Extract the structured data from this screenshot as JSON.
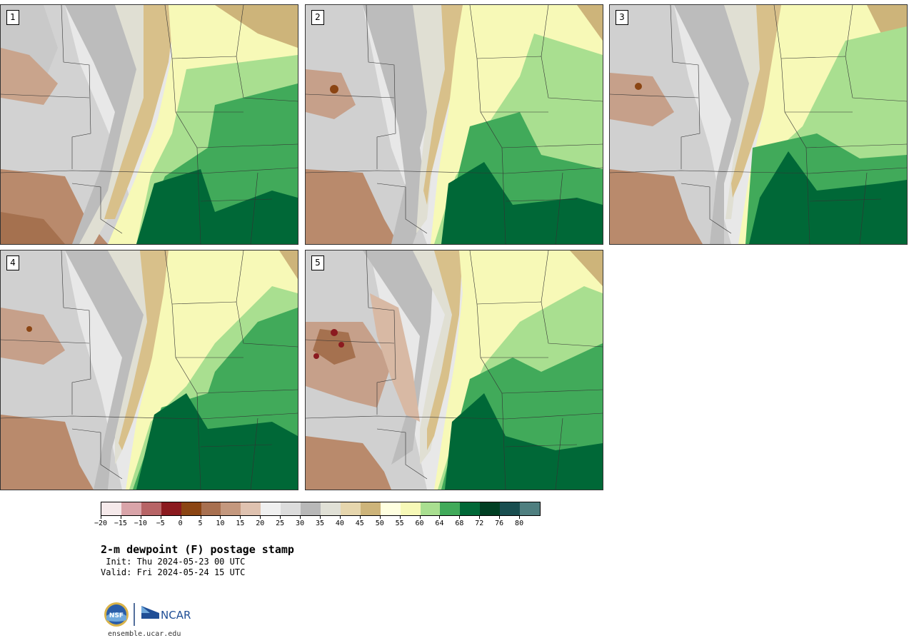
{
  "panels": [
    {
      "label": "1"
    },
    {
      "label": "2"
    },
    {
      "label": "3"
    },
    {
      "label": "4"
    },
    {
      "label": "5"
    }
  ],
  "colorbar": {
    "colors": [
      "#f5e9ea",
      "#d9a4a9",
      "#b76466",
      "#8b1a1f",
      "#8b4513",
      "#a87050",
      "#c4987e",
      "#dfc2b0",
      "#f0f0f0",
      "#dcdcdc",
      "#b8b8b8",
      "#e0e0d6",
      "#e6d6ad",
      "#cdb47a",
      "#ffffe0",
      "#f7f9b7",
      "#a9df90",
      "#41aa5a",
      "#006837",
      "#003f23",
      "#194e50",
      "#4f7f80"
    ],
    "tick_labels": [
      "−20",
      "−15",
      "−10",
      "−5",
      "0",
      "5",
      "10",
      "15",
      "20",
      "25",
      "30",
      "35",
      "40",
      "45",
      "50",
      "55",
      "60",
      "64",
      "68",
      "72",
      "76",
      "80"
    ]
  },
  "title": "2-m dewpoint (F) postage stamp",
  "init": " Init: Thu 2024-05-23 00 UTC",
  "valid": "Valid: Fri 2024-05-24 15 UTC",
  "logos": {
    "left_text": "NSF",
    "right_text": "NCAR"
  },
  "footer_url": "ensemble.ucar.edu"
}
